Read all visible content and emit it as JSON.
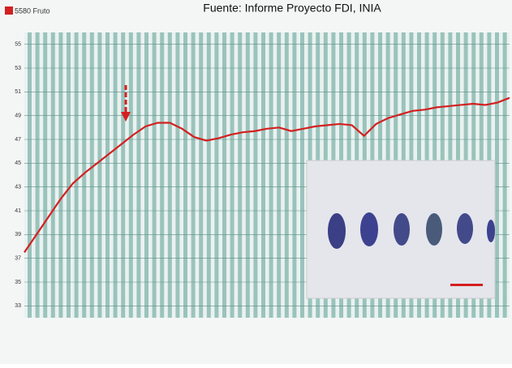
{
  "chart_data": {
    "type": "line",
    "title": "Fuente: Informe Proyecto FDI, INIA",
    "x": [
      0,
      1,
      2,
      3,
      4,
      5,
      6,
      7,
      8,
      9,
      10,
      11,
      12,
      13,
      14,
      15,
      16,
      17,
      18,
      19,
      20,
      21,
      22,
      23,
      24,
      25,
      26,
      27,
      28,
      29,
      30,
      31,
      32,
      33,
      34,
      35,
      36,
      37,
      38,
      39,
      40
    ],
    "xlim": [
      0,
      40
    ],
    "series": [
      {
        "name": "5580 Fruto",
        "color": "#d42020",
        "values": [
          37.5,
          39,
          40.5,
          42,
          43.3,
          44.2,
          45,
          45.8,
          46.6,
          47.4,
          48.1,
          48.4,
          48.4,
          47.9,
          47.2,
          46.9,
          47.1,
          47.4,
          47.6,
          47.7,
          47.9,
          48.0,
          47.7,
          47.9,
          48.1,
          48.2,
          48.3,
          48.2,
          47.3,
          48.3,
          48.8,
          49.1,
          49.4,
          49.5,
          49.7,
          49.8,
          49.9,
          50.0,
          49.9,
          50.1,
          50.5
        ]
      }
    ],
    "ylim": [
      32,
      56
    ],
    "yticks": [
      33,
      35,
      37,
      39,
      41,
      43,
      45,
      47,
      49,
      51,
      53,
      55
    ],
    "grid": true
  }
}
